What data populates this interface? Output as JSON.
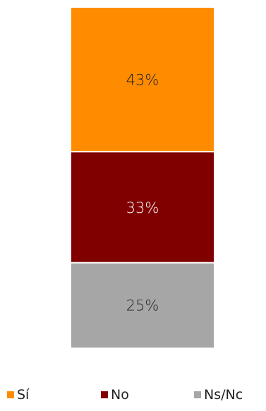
{
  "chart_data": {
    "type": "bar",
    "stacked": true,
    "normalized": true,
    "series": [
      {
        "name": "Sí",
        "value": 43,
        "label": "43%",
        "color": "#ff8c00",
        "label_color": "#222222"
      },
      {
        "name": "No",
        "value": 33,
        "label": "33%",
        "color": "#800000",
        "label_color": "#ffffff"
      },
      {
        "name": "Ns/Nc",
        "value": 25,
        "label": "25%",
        "color": "#a6a6a6",
        "label_color": "#222222"
      }
    ],
    "legend_position": "bottom",
    "grid": false
  }
}
